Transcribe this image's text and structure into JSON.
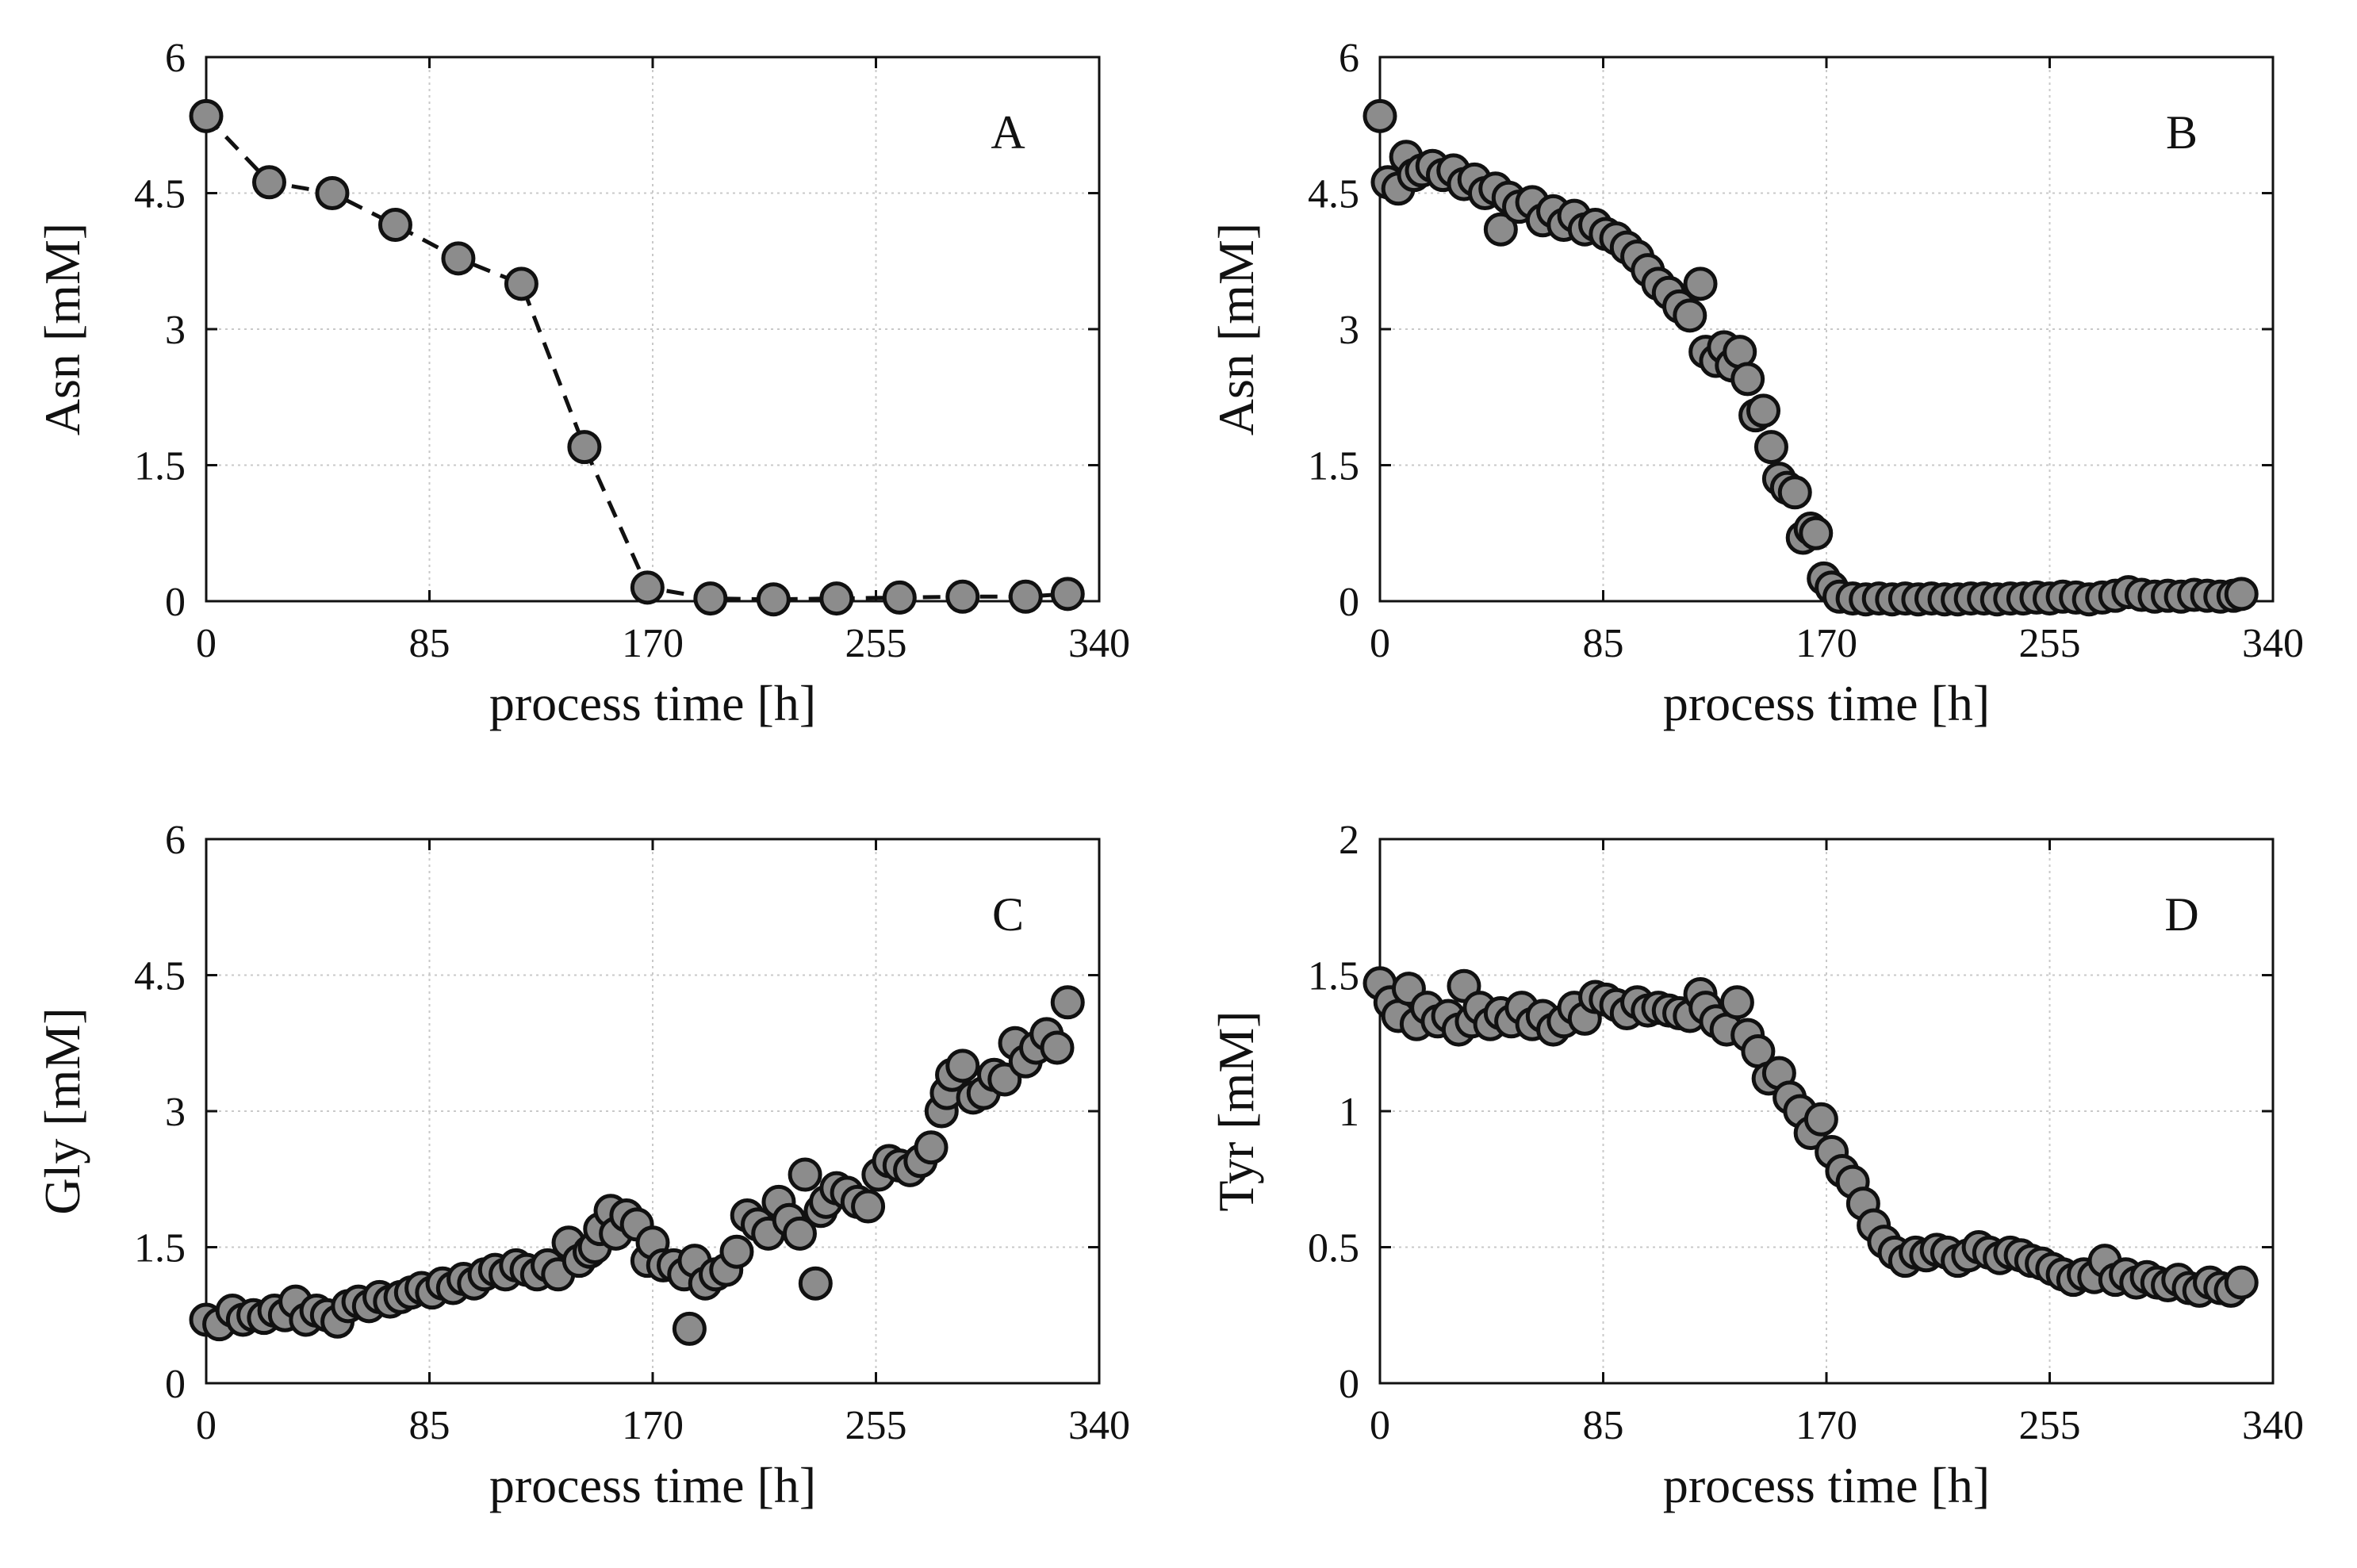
{
  "chart_data": [
    {
      "type": "line",
      "panel": "A",
      "xlabel": "process time [h]",
      "ylabel": "Asn [mM]",
      "xlim": [
        0,
        340
      ],
      "ylim": [
        0,
        6
      ],
      "xticks": [
        "0",
        "85",
        "170",
        "255",
        "340"
      ],
      "yticks": [
        "0",
        "1.5",
        "3",
        "4.5",
        "6"
      ],
      "grid": true,
      "line_style": "dashed",
      "x": [
        0,
        24,
        48,
        72,
        96,
        120,
        144,
        168,
        192,
        216,
        240,
        264,
        288,
        312,
        328
      ],
      "y": [
        5.35,
        4.62,
        4.5,
        4.15,
        3.78,
        3.5,
        1.7,
        0.15,
        0.03,
        0.02,
        0.03,
        0.04,
        0.05,
        0.05,
        0.08
      ]
    },
    {
      "type": "scatter",
      "panel": "B",
      "xlabel": "process time [h]",
      "ylabel": "Asn [mM]",
      "xlim": [
        0,
        340
      ],
      "ylim": [
        0,
        6
      ],
      "xticks": [
        "0",
        "85",
        "170",
        "255",
        "340"
      ],
      "yticks": [
        "0",
        "1.5",
        "3",
        "4.5",
        "6"
      ],
      "grid": true,
      "x": [
        0,
        3,
        7,
        10,
        13,
        16,
        20,
        24,
        28,
        32,
        36,
        40,
        44,
        46,
        49,
        53,
        58,
        62,
        66,
        70,
        74,
        78,
        82,
        86,
        90,
        94,
        98,
        102,
        106,
        110,
        114,
        118,
        122,
        124,
        128,
        131,
        134,
        137,
        140,
        143,
        146,
        149,
        152,
        155,
        158,
        161,
        164,
        166,
        169,
        172,
        175,
        180,
        185,
        190,
        195,
        200,
        205,
        210,
        215,
        220,
        225,
        230,
        235,
        240,
        245,
        250,
        255,
        260,
        265,
        270,
        275,
        280,
        285,
        290,
        295,
        300,
        305,
        310,
        315,
        320,
        325,
        328
      ],
      "y": [
        5.35,
        4.62,
        4.55,
        4.9,
        4.7,
        4.75,
        4.8,
        4.7,
        4.75,
        4.6,
        4.65,
        4.5,
        4.55,
        4.1,
        4.45,
        4.35,
        4.4,
        4.2,
        4.3,
        4.15,
        4.25,
        4.1,
        4.15,
        4.05,
        4.0,
        3.9,
        3.8,
        3.65,
        3.5,
        3.4,
        3.25,
        3.15,
        3.5,
        2.75,
        2.65,
        2.8,
        2.6,
        2.75,
        2.45,
        2.05,
        2.1,
        1.7,
        1.35,
        1.25,
        1.2,
        0.7,
        0.8,
        0.75,
        0.25,
        0.15,
        0.05,
        0.03,
        0.02,
        0.03,
        0.02,
        0.03,
        0.02,
        0.03,
        0.02,
        0.02,
        0.03,
        0.03,
        0.02,
        0.03,
        0.03,
        0.04,
        0.03,
        0.05,
        0.04,
        0.02,
        0.04,
        0.06,
        0.1,
        0.07,
        0.05,
        0.06,
        0.05,
        0.07,
        0.06,
        0.05,
        0.06,
        0.08
      ]
    },
    {
      "type": "scatter",
      "panel": "C",
      "xlabel": "process time [h]",
      "ylabel": "Gly [mM]",
      "xlim": [
        0,
        340
      ],
      "ylim": [
        0,
        6
      ],
      "xticks": [
        "0",
        "85",
        "170",
        "255",
        "340"
      ],
      "yticks": [
        "0",
        "1.5",
        "3",
        "4.5",
        "6"
      ],
      "grid": true,
      "x": [
        0,
        5,
        10,
        14,
        18,
        22,
        26,
        30,
        34,
        38,
        42,
        46,
        50,
        54,
        58,
        62,
        66,
        70,
        74,
        78,
        82,
        86,
        90,
        94,
        98,
        102,
        106,
        110,
        114,
        118,
        122,
        126,
        130,
        134,
        138,
        142,
        146,
        148,
        150,
        154,
        156,
        160,
        164,
        168,
        170,
        174,
        178,
        182,
        184,
        186,
        190,
        194,
        198,
        202,
        206,
        210,
        214,
        218,
        222,
        226,
        228,
        232,
        234,
        236,
        240,
        244,
        248,
        252,
        256,
        260,
        264,
        268,
        272,
        276,
        280,
        282,
        284,
        288,
        292,
        296,
        300,
        304,
        308,
        312,
        316,
        320,
        324,
        328
      ],
      "y": [
        0.7,
        0.65,
        0.8,
        0.7,
        0.75,
        0.72,
        0.8,
        0.75,
        0.9,
        0.7,
        0.8,
        0.75,
        0.68,
        0.85,
        0.9,
        0.85,
        0.95,
        0.9,
        0.95,
        1.0,
        1.05,
        1.0,
        1.1,
        1.05,
        1.15,
        1.1,
        1.2,
        1.25,
        1.2,
        1.3,
        1.25,
        1.2,
        1.3,
        1.2,
        1.55,
        1.35,
        1.45,
        1.5,
        1.7,
        1.9,
        1.65,
        1.85,
        1.75,
        1.35,
        1.55,
        1.3,
        1.3,
        1.2,
        0.6,
        1.35,
        1.1,
        1.2,
        1.25,
        1.45,
        1.85,
        1.75,
        1.65,
        2.0,
        1.8,
        1.65,
        2.3,
        1.1,
        1.9,
        2.0,
        2.15,
        2.1,
        2.0,
        1.95,
        2.3,
        2.45,
        2.4,
        2.35,
        2.45,
        2.6,
        3.0,
        3.2,
        3.4,
        3.5,
        3.15,
        3.2,
        3.4,
        3.35,
        3.75,
        3.55,
        3.7,
        3.85,
        3.7,
        4.2
      ]
    },
    {
      "type": "scatter",
      "panel": "D",
      "xlabel": "process time [h]",
      "ylabel": "Tyr [mM]",
      "xlim": [
        0,
        340
      ],
      "ylim": [
        0,
        2
      ],
      "xticks": [
        "0",
        "85",
        "170",
        "255",
        "340"
      ],
      "yticks": [
        "0",
        "0.5",
        "1",
        "1.5",
        "2"
      ],
      "grid": true,
      "x": [
        0,
        4,
        7,
        11,
        14,
        18,
        22,
        26,
        30,
        32,
        35,
        38,
        42,
        46,
        50,
        54,
        58,
        62,
        66,
        70,
        74,
        78,
        82,
        86,
        90,
        94,
        98,
        102,
        106,
        110,
        114,
        118,
        122,
        124,
        128,
        132,
        136,
        140,
        144,
        148,
        152,
        156,
        160,
        164,
        168,
        172,
        176,
        180,
        184,
        188,
        192,
        196,
        200,
        204,
        208,
        212,
        216,
        220,
        224,
        228,
        232,
        236,
        240,
        244,
        248,
        252,
        256,
        260,
        264,
        268,
        272,
        276,
        280,
        284,
        288,
        292,
        296,
        300,
        304,
        308,
        312,
        316,
        320,
        324,
        328
      ],
      "y": [
        1.47,
        1.4,
        1.35,
        1.45,
        1.32,
        1.38,
        1.33,
        1.35,
        1.3,
        1.46,
        1.33,
        1.38,
        1.32,
        1.36,
        1.33,
        1.38,
        1.32,
        1.35,
        1.3,
        1.33,
        1.38,
        1.34,
        1.42,
        1.41,
        1.39,
        1.36,
        1.4,
        1.37,
        1.38,
        1.37,
        1.36,
        1.35,
        1.43,
        1.38,
        1.33,
        1.3,
        1.4,
        1.28,
        1.22,
        1.12,
        1.14,
        1.05,
        1.0,
        0.92,
        0.97,
        0.85,
        0.78,
        0.74,
        0.66,
        0.58,
        0.52,
        0.48,
        0.45,
        0.48,
        0.47,
        0.49,
        0.48,
        0.45,
        0.47,
        0.5,
        0.48,
        0.46,
        0.48,
        0.47,
        0.45,
        0.44,
        0.42,
        0.4,
        0.38,
        0.4,
        0.39,
        0.45,
        0.38,
        0.4,
        0.37,
        0.39,
        0.37,
        0.36,
        0.38,
        0.35,
        0.34,
        0.37,
        0.35,
        0.34,
        0.37
      ]
    }
  ]
}
